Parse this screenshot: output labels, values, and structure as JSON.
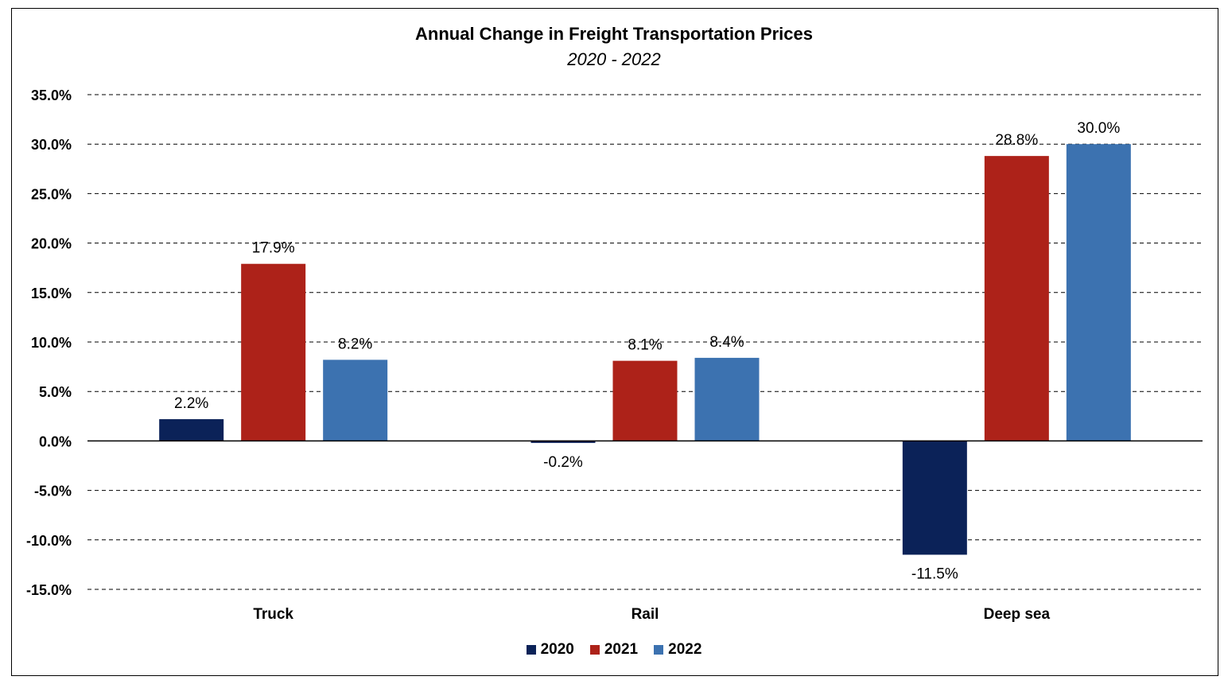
{
  "chart_data": {
    "type": "bar",
    "title": "Annual Change in Freight Transportation Prices",
    "subtitle": "2020 - 2022",
    "categories": [
      "Truck",
      "Rail",
      "Deep sea"
    ],
    "series": [
      {
        "name": "2020",
        "color": "#0B2258",
        "values": [
          2.2,
          -0.2,
          -11.5
        ],
        "labels": [
          "2.2%",
          "-0.2%",
          "-11.5%"
        ]
      },
      {
        "name": "2021",
        "color": "#AD2219",
        "values": [
          17.9,
          8.1,
          28.8
        ],
        "labels": [
          "17.9%",
          "8.1%",
          "28.8%"
        ]
      },
      {
        "name": "2022",
        "color": "#3C72B0",
        "values": [
          8.2,
          8.4,
          30.0
        ],
        "labels": [
          "8.2%",
          "8.4%",
          "30.0%"
        ]
      }
    ],
    "yticks": [
      "35.0%",
      "30.0%",
      "25.0%",
      "20.0%",
      "15.0%",
      "10.0%",
      "5.0%",
      "0.0%",
      "-5.0%",
      "-10.0%",
      "-15.0%"
    ],
    "ylim": [
      -15,
      35
    ],
    "grid": "dashed horizontal",
    "legend_position": "bottom"
  }
}
